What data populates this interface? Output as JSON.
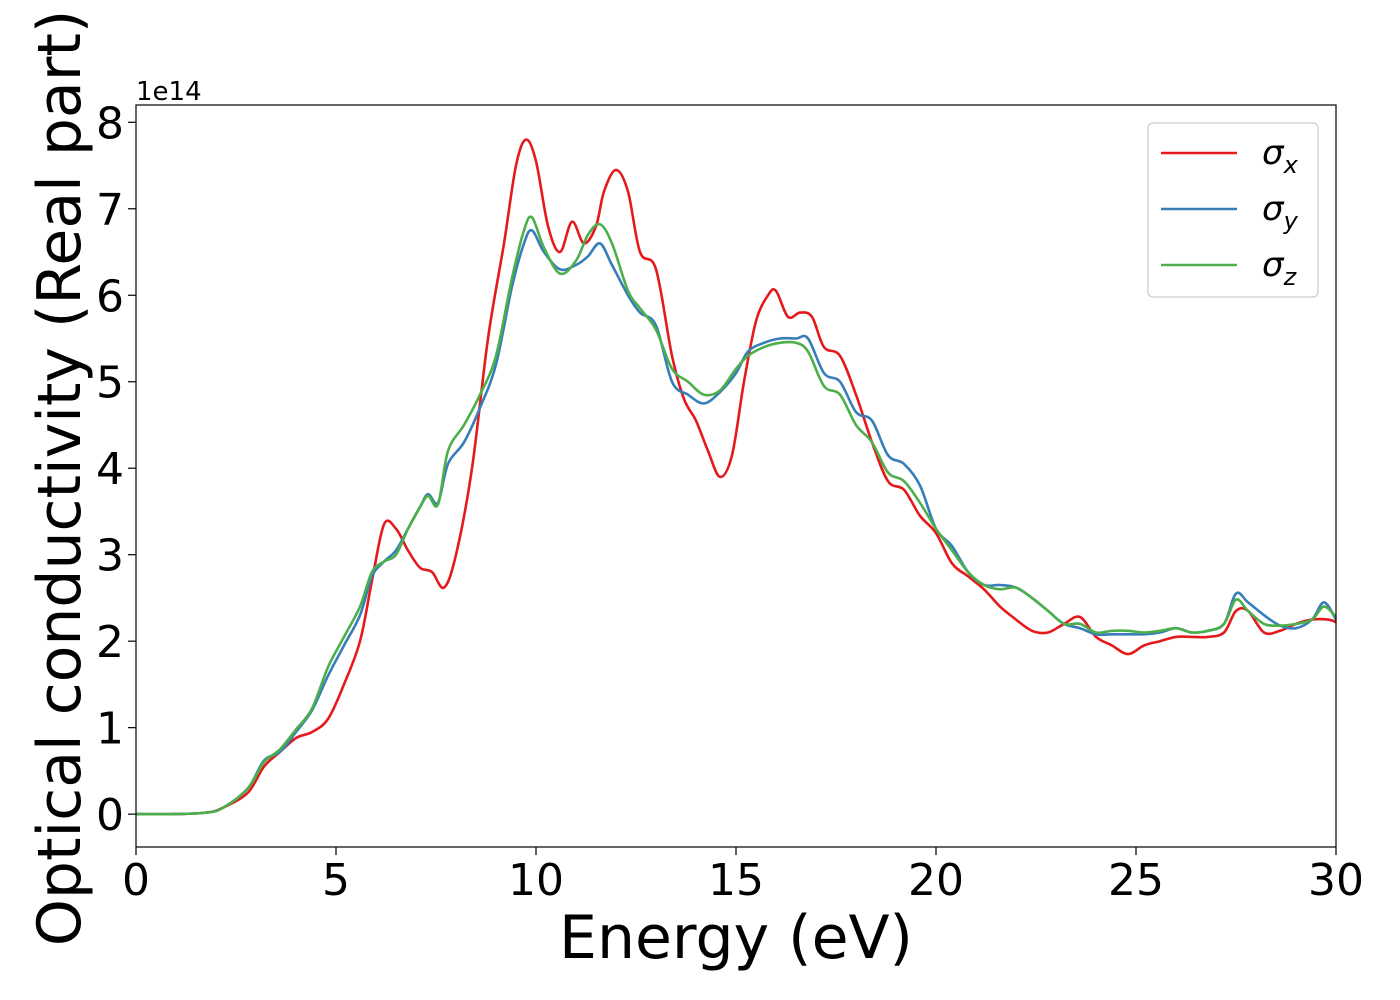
{
  "chart_data": {
    "type": "line",
    "xlabel": "Energy (eV)",
    "ylabel": "Optical conductivity (Real part)",
    "y_offset_text": "1e14",
    "xlim": [
      0,
      30
    ],
    "ylim": [
      -0.38,
      8.2
    ],
    "x_ticks": [
      0,
      5,
      10,
      15,
      20,
      25,
      30
    ],
    "x_tick_labels": [
      "0",
      "5",
      "10",
      "15",
      "20",
      "25",
      "30"
    ],
    "y_ticks": [
      0,
      1,
      2,
      3,
      4,
      5,
      6,
      7,
      8
    ],
    "y_tick_labels": [
      "0",
      "1",
      "2",
      "3",
      "4",
      "5",
      "6",
      "7",
      "8"
    ],
    "grid": false,
    "legend_position": "top-right",
    "series": [
      {
        "name": "σx",
        "legend_base": "σ",
        "legend_sub": "x",
        "color": "#e41a1c",
        "points": [
          [
            0,
            0
          ],
          [
            1,
            0
          ],
          [
            1.8,
            0.02
          ],
          [
            2.2,
            0.08
          ],
          [
            2.8,
            0.25
          ],
          [
            3.2,
            0.55
          ],
          [
            3.6,
            0.72
          ],
          [
            4,
            0.88
          ],
          [
            4.4,
            0.95
          ],
          [
            4.8,
            1.1
          ],
          [
            5.2,
            1.5
          ],
          [
            5.6,
            2.0
          ],
          [
            5.9,
            2.7
          ],
          [
            6.2,
            3.35
          ],
          [
            6.5,
            3.3
          ],
          [
            6.8,
            3.05
          ],
          [
            7.1,
            2.85
          ],
          [
            7.4,
            2.8
          ],
          [
            7.7,
            2.62
          ],
          [
            8,
            3.0
          ],
          [
            8.4,
            4.0
          ],
          [
            8.8,
            5.5
          ],
          [
            9.2,
            6.6
          ],
          [
            9.5,
            7.5
          ],
          [
            9.75,
            7.8
          ],
          [
            10,
            7.55
          ],
          [
            10.3,
            6.8
          ],
          [
            10.6,
            6.5
          ],
          [
            10.9,
            6.85
          ],
          [
            11.2,
            6.6
          ],
          [
            11.5,
            6.8
          ],
          [
            11.7,
            7.2
          ],
          [
            12,
            7.45
          ],
          [
            12.3,
            7.2
          ],
          [
            12.6,
            6.5
          ],
          [
            13,
            6.3
          ],
          [
            13.4,
            5.3
          ],
          [
            13.7,
            4.8
          ],
          [
            14,
            4.55
          ],
          [
            14.3,
            4.2
          ],
          [
            14.6,
            3.9
          ],
          [
            14.9,
            4.15
          ],
          [
            15.2,
            5.0
          ],
          [
            15.5,
            5.7
          ],
          [
            15.8,
            6.0
          ],
          [
            16,
            6.05
          ],
          [
            16.3,
            5.75
          ],
          [
            16.6,
            5.8
          ],
          [
            16.9,
            5.75
          ],
          [
            17.2,
            5.4
          ],
          [
            17.6,
            5.3
          ],
          [
            18,
            4.85
          ],
          [
            18.4,
            4.3
          ],
          [
            18.8,
            3.85
          ],
          [
            19.2,
            3.75
          ],
          [
            19.6,
            3.45
          ],
          [
            20,
            3.25
          ],
          [
            20.4,
            2.9
          ],
          [
            20.8,
            2.75
          ],
          [
            21.2,
            2.6
          ],
          [
            21.6,
            2.4
          ],
          [
            22,
            2.25
          ],
          [
            22.4,
            2.12
          ],
          [
            22.8,
            2.1
          ],
          [
            23.2,
            2.2
          ],
          [
            23.6,
            2.28
          ],
          [
            24,
            2.05
          ],
          [
            24.4,
            1.95
          ],
          [
            24.8,
            1.85
          ],
          [
            25.2,
            1.95
          ],
          [
            25.6,
            2.0
          ],
          [
            26,
            2.05
          ],
          [
            26.4,
            2.05
          ],
          [
            26.8,
            2.05
          ],
          [
            27.2,
            2.1
          ],
          [
            27.5,
            2.35
          ],
          [
            27.8,
            2.35
          ],
          [
            28.2,
            2.1
          ],
          [
            28.6,
            2.12
          ],
          [
            29,
            2.2
          ],
          [
            29.4,
            2.25
          ],
          [
            29.8,
            2.25
          ],
          [
            30,
            2.22
          ]
        ]
      },
      {
        "name": "σy",
        "legend_base": "σ",
        "legend_sub": "y",
        "color": "#377eb8",
        "points": [
          [
            0,
            0
          ],
          [
            1,
            0
          ],
          [
            1.8,
            0.02
          ],
          [
            2.2,
            0.08
          ],
          [
            2.8,
            0.3
          ],
          [
            3.2,
            0.62
          ],
          [
            3.6,
            0.72
          ],
          [
            4,
            0.95
          ],
          [
            4.4,
            1.2
          ],
          [
            4.8,
            1.6
          ],
          [
            5.2,
            1.95
          ],
          [
            5.6,
            2.3
          ],
          [
            5.9,
            2.75
          ],
          [
            6.2,
            2.92
          ],
          [
            6.5,
            3.05
          ],
          [
            6.8,
            3.3
          ],
          [
            7.1,
            3.55
          ],
          [
            7.3,
            3.7
          ],
          [
            7.55,
            3.6
          ],
          [
            7.8,
            4.05
          ],
          [
            8.2,
            4.3
          ],
          [
            8.6,
            4.7
          ],
          [
            9,
            5.2
          ],
          [
            9.4,
            6.1
          ],
          [
            9.7,
            6.6
          ],
          [
            9.9,
            6.75
          ],
          [
            10.2,
            6.5
          ],
          [
            10.6,
            6.3
          ],
          [
            11,
            6.35
          ],
          [
            11.3,
            6.45
          ],
          [
            11.6,
            6.6
          ],
          [
            11.9,
            6.35
          ],
          [
            12.3,
            6.0
          ],
          [
            12.6,
            5.8
          ],
          [
            13,
            5.65
          ],
          [
            13.4,
            5.0
          ],
          [
            13.8,
            4.85
          ],
          [
            14.2,
            4.75
          ],
          [
            14.6,
            4.88
          ],
          [
            15,
            5.1
          ],
          [
            15.3,
            5.35
          ],
          [
            15.7,
            5.45
          ],
          [
            16.1,
            5.5
          ],
          [
            16.5,
            5.5
          ],
          [
            16.8,
            5.5
          ],
          [
            17.2,
            5.1
          ],
          [
            17.6,
            5.0
          ],
          [
            18,
            4.65
          ],
          [
            18.4,
            4.55
          ],
          [
            18.8,
            4.15
          ],
          [
            19.2,
            4.05
          ],
          [
            19.6,
            3.8
          ],
          [
            20,
            3.3
          ],
          [
            20.4,
            3.1
          ],
          [
            20.8,
            2.8
          ],
          [
            21.2,
            2.65
          ],
          [
            21.6,
            2.65
          ],
          [
            22,
            2.62
          ],
          [
            22.4,
            2.5
          ],
          [
            22.8,
            2.35
          ],
          [
            23.2,
            2.2
          ],
          [
            23.6,
            2.15
          ],
          [
            24,
            2.08
          ],
          [
            24.4,
            2.08
          ],
          [
            24.8,
            2.08
          ],
          [
            25.2,
            2.08
          ],
          [
            25.6,
            2.1
          ],
          [
            26,
            2.15
          ],
          [
            26.4,
            2.1
          ],
          [
            26.8,
            2.12
          ],
          [
            27.2,
            2.2
          ],
          [
            27.5,
            2.55
          ],
          [
            27.8,
            2.45
          ],
          [
            28.2,
            2.3
          ],
          [
            28.6,
            2.18
          ],
          [
            29,
            2.15
          ],
          [
            29.4,
            2.25
          ],
          [
            29.7,
            2.45
          ],
          [
            30,
            2.25
          ]
        ]
      },
      {
        "name": "σz",
        "legend_base": "σ",
        "legend_sub": "z",
        "color": "#4daf4a",
        "points": [
          [
            0,
            0
          ],
          [
            1,
            0
          ],
          [
            1.8,
            0.02
          ],
          [
            2.2,
            0.08
          ],
          [
            2.8,
            0.3
          ],
          [
            3.2,
            0.6
          ],
          [
            3.6,
            0.75
          ],
          [
            4,
            0.98
          ],
          [
            4.4,
            1.22
          ],
          [
            4.8,
            1.7
          ],
          [
            5.2,
            2.05
          ],
          [
            5.6,
            2.4
          ],
          [
            5.9,
            2.8
          ],
          [
            6.2,
            2.92
          ],
          [
            6.5,
            3.0
          ],
          [
            6.8,
            3.3
          ],
          [
            7.1,
            3.55
          ],
          [
            7.3,
            3.68
          ],
          [
            7.55,
            3.58
          ],
          [
            7.8,
            4.2
          ],
          [
            8.2,
            4.5
          ],
          [
            8.6,
            4.85
          ],
          [
            9,
            5.3
          ],
          [
            9.4,
            6.2
          ],
          [
            9.7,
            6.75
          ],
          [
            9.9,
            6.9
          ],
          [
            10.2,
            6.55
          ],
          [
            10.6,
            6.25
          ],
          [
            11,
            6.4
          ],
          [
            11.3,
            6.7
          ],
          [
            11.6,
            6.82
          ],
          [
            11.9,
            6.6
          ],
          [
            12.3,
            6.05
          ],
          [
            12.6,
            5.85
          ],
          [
            13,
            5.6
          ],
          [
            13.4,
            5.15
          ],
          [
            13.8,
            5.0
          ],
          [
            14.2,
            4.85
          ],
          [
            14.6,
            4.9
          ],
          [
            15,
            5.15
          ],
          [
            15.3,
            5.3
          ],
          [
            15.7,
            5.4
          ],
          [
            16.1,
            5.45
          ],
          [
            16.5,
            5.45
          ],
          [
            16.8,
            5.35
          ],
          [
            17.2,
            4.95
          ],
          [
            17.6,
            4.85
          ],
          [
            18,
            4.5
          ],
          [
            18.4,
            4.3
          ],
          [
            18.8,
            3.95
          ],
          [
            19.2,
            3.85
          ],
          [
            19.6,
            3.6
          ],
          [
            20,
            3.3
          ],
          [
            20.4,
            3.05
          ],
          [
            20.8,
            2.8
          ],
          [
            21.2,
            2.65
          ],
          [
            21.6,
            2.6
          ],
          [
            22,
            2.62
          ],
          [
            22.4,
            2.5
          ],
          [
            22.8,
            2.35
          ],
          [
            23.2,
            2.2
          ],
          [
            23.6,
            2.2
          ],
          [
            24,
            2.1
          ],
          [
            24.4,
            2.12
          ],
          [
            24.8,
            2.12
          ],
          [
            25.2,
            2.1
          ],
          [
            25.6,
            2.12
          ],
          [
            26,
            2.15
          ],
          [
            26.4,
            2.1
          ],
          [
            26.8,
            2.12
          ],
          [
            27.2,
            2.2
          ],
          [
            27.5,
            2.48
          ],
          [
            27.8,
            2.35
          ],
          [
            28.2,
            2.2
          ],
          [
            28.6,
            2.18
          ],
          [
            29,
            2.2
          ],
          [
            29.4,
            2.25
          ],
          [
            29.7,
            2.4
          ],
          [
            30,
            2.28
          ]
        ]
      }
    ]
  }
}
